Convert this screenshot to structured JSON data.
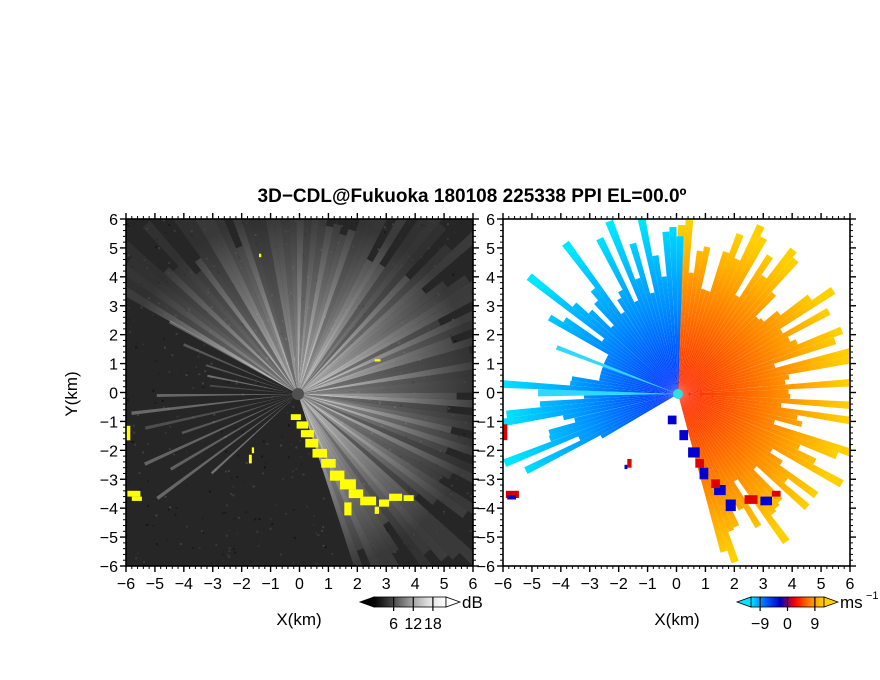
{
  "figure": {
    "title": "3D−CDL@Fukuoka 180108 225338 PPI EL=00.0º"
  },
  "chart_data": [
    {
      "type": "heatmap",
      "panel": "reflectivity",
      "xlabel": "X(km)",
      "ylabel": "Y(km)",
      "xlim": [
        -6,
        6
      ],
      "ylim": [
        -6,
        6
      ],
      "xticks": [
        "−6",
        "−5",
        "−4",
        "−3",
        "−2",
        "−1",
        "0",
        "1",
        "2",
        "3",
        "4",
        "5",
        "6"
      ],
      "yticks": [
        "6",
        "5",
        "4",
        "3",
        "2",
        "1",
        "0",
        "−1",
        "−2",
        "−3",
        "−4",
        "−5",
        "−6"
      ],
      "colorbar": {
        "unit": "dB",
        "ticks": [
          "6",
          "12",
          "18"
        ],
        "range": [
          0,
          22
        ],
        "colors": [
          "#000000",
          "#ffffff"
        ],
        "flag_color": "#ffff00"
      },
      "grid": false
    },
    {
      "type": "heatmap",
      "panel": "doppler-velocity",
      "xlabel": "X(km)",
      "xlim": [
        -6,
        6
      ],
      "ylim": [
        -6,
        6
      ],
      "xticks": [
        "−6",
        "−5",
        "−4",
        "−3",
        "−2",
        "−1",
        "0",
        "1",
        "2",
        "3",
        "4",
        "5",
        "6"
      ],
      "yticks": [
        "6",
        "5",
        "4",
        "3",
        "2",
        "1",
        "0",
        "−1",
        "−2",
        "−3",
        "−4",
        "−5",
        "−6"
      ],
      "colorbar": {
        "unit": "ms",
        "unit_exponent": "−1",
        "ticks": [
          "−9",
          "0",
          "9"
        ],
        "range": [
          -12,
          12
        ],
        "colors": [
          "#00e5ff",
          "#0060ff",
          "#0000c0",
          "#ff0000",
          "#ff8000",
          "#ffd000"
        ]
      },
      "grid": false
    }
  ]
}
